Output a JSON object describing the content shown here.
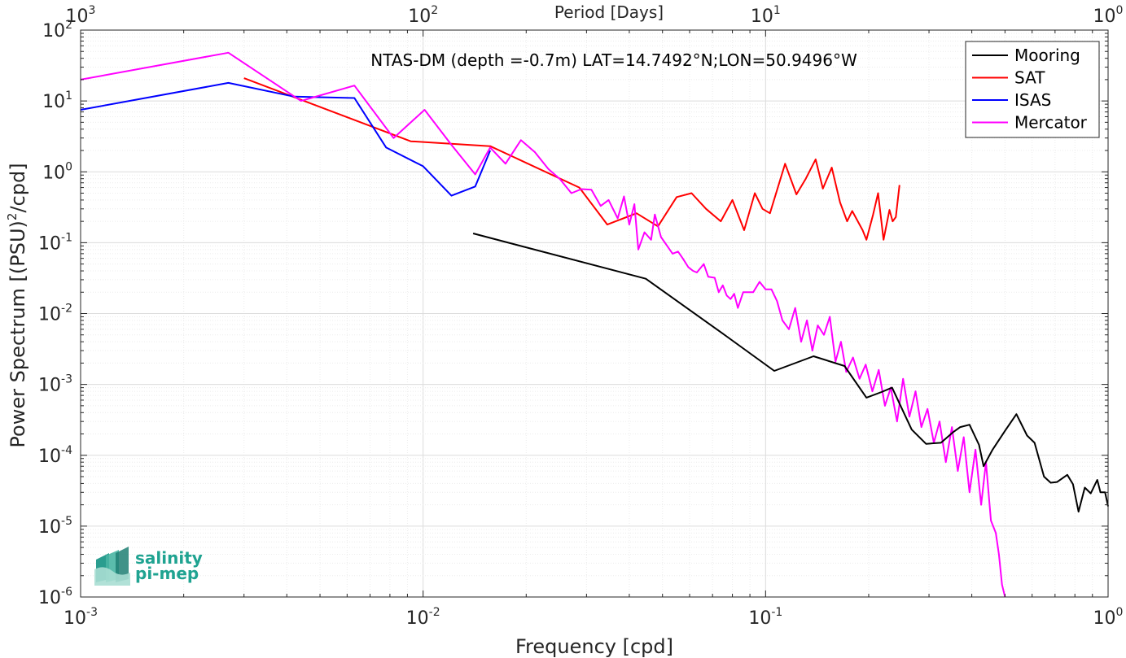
{
  "chart_data": {
    "type": "line",
    "title": "NTAS-DM (depth =-0.7m) LAT=14.7492°N;LON=50.9496°W",
    "xlabel": "Frequency [cpd]",
    "ylabel": "Power Spectrum [(PSU)²/cpd]",
    "top_xlabel": "Period [Days]",
    "xscale": "log",
    "yscale": "log",
    "xlim": [
      0.001,
      1
    ],
    "ylim": [
      1e-06,
      100
    ],
    "grid": true,
    "legend_position": "top-right",
    "x_tick_labels": [
      {
        "value": 0.001,
        "base": "10",
        "exp": "-3"
      },
      {
        "value": 0.01,
        "base": "10",
        "exp": "-2"
      },
      {
        "value": 0.1,
        "base": "10",
        "exp": "-1"
      },
      {
        "value": 1,
        "base": "10",
        "exp": "0"
      }
    ],
    "y_tick_labels": [
      {
        "value": 100,
        "base": "10",
        "exp": "2"
      },
      {
        "value": 10,
        "base": "10",
        "exp": "1"
      },
      {
        "value": 1,
        "base": "10",
        "exp": "0"
      },
      {
        "value": 0.1,
        "base": "10",
        "exp": "-1"
      },
      {
        "value": 0.01,
        "base": "10",
        "exp": "-2"
      },
      {
        "value": 0.001,
        "base": "10",
        "exp": "-3"
      },
      {
        "value": 0.0001,
        "base": "10",
        "exp": "-4"
      },
      {
        "value": 1e-05,
        "base": "10",
        "exp": "-5"
      },
      {
        "value": 1e-06,
        "base": "10",
        "exp": "-6"
      }
    ],
    "top_tick_labels": [
      {
        "freq": 0.001,
        "base": "10",
        "exp": "3"
      },
      {
        "freq": 0.01,
        "base": "10",
        "exp": "2"
      },
      {
        "freq": 0.1,
        "base": "10",
        "exp": "1"
      },
      {
        "freq": 1,
        "base": "10",
        "exp": "0"
      }
    ],
    "series": [
      {
        "name": "Mooring",
        "color": "#000000",
        "x": [
          0.014,
          0.0447,
          0.075,
          0.106,
          0.138,
          0.17,
          0.197,
          0.218,
          0.234,
          0.267,
          0.294,
          0.325,
          0.352,
          0.37,
          0.394,
          0.42,
          0.433,
          0.46,
          0.5,
          0.54,
          0.58,
          0.61,
          0.65,
          0.68,
          0.71,
          0.76,
          0.79,
          0.82,
          0.855,
          0.89,
          0.93,
          0.95,
          0.98,
          1.0
        ],
        "y": [
          0.135,
          0.031,
          0.0052,
          0.00155,
          0.0025,
          0.00182,
          0.00065,
          0.00078,
          0.0009,
          0.00023,
          0.000145,
          0.00015,
          0.00021,
          0.00025,
          0.00027,
          0.00014,
          7e-05,
          0.00012,
          0.000221,
          0.00038,
          0.00019,
          0.00015,
          5e-05,
          4.1e-05,
          4.2e-05,
          5.3e-05,
          3.9e-05,
          1.6e-05,
          3.5e-05,
          2.9e-05,
          4.5e-05,
          3e-05,
          3e-05,
          1.9e-05
        ]
      },
      {
        "name": "SAT",
        "color": "#ff0000",
        "x": [
          0.003,
          0.0092,
          0.0157,
          0.0286,
          0.0345,
          0.042,
          0.0485,
          0.055,
          0.0608,
          0.067,
          0.074,
          0.08,
          0.0866,
          0.093,
          0.098,
          0.103,
          0.114,
          0.123,
          0.131,
          0.14,
          0.147,
          0.156,
          0.165,
          0.173,
          0.179,
          0.192,
          0.197,
          0.206,
          0.213,
          0.221,
          0.23,
          0.235,
          0.24,
          0.246
        ],
        "y": [
          21,
          2.7,
          2.3,
          0.6,
          0.18,
          0.26,
          0.17,
          0.44,
          0.5,
          0.3,
          0.2,
          0.4,
          0.15,
          0.5,
          0.3,
          0.26,
          1.3,
          0.48,
          0.8,
          1.5,
          0.58,
          1.15,
          0.37,
          0.2,
          0.28,
          0.15,
          0.11,
          0.25,
          0.5,
          0.11,
          0.29,
          0.2,
          0.23,
          0.65
        ]
      },
      {
        "name": "ISAS",
        "color": "#0000ff",
        "x": [
          0.001,
          0.0027,
          0.0042,
          0.0063,
          0.0078,
          0.01,
          0.0121,
          0.0142,
          0.0157
        ],
        "y": [
          7.5,
          18,
          11.5,
          11,
          2.2,
          1.2,
          0.46,
          0.62,
          2.0
        ]
      },
      {
        "name": "Mercator",
        "color": "#ff00ff",
        "x": [
          0.001,
          0.0027,
          0.0044,
          0.0063,
          0.0082,
          0.0101,
          0.0121,
          0.0142,
          0.0157,
          0.0174,
          0.0193,
          0.0212,
          0.0232,
          0.0251,
          0.0271,
          0.029,
          0.031,
          0.033,
          0.0348,
          0.037,
          0.0386,
          0.04,
          0.0414,
          0.0425,
          0.0443,
          0.0463,
          0.0475,
          0.0495,
          0.0516,
          0.0535,
          0.0555,
          0.0573,
          0.0595,
          0.0614,
          0.063,
          0.066,
          0.068,
          0.071,
          0.073,
          0.075,
          0.077,
          0.079,
          0.081,
          0.083,
          0.086,
          0.089,
          0.092,
          0.096,
          0.1,
          0.104,
          0.108,
          0.112,
          0.117,
          0.122,
          0.127,
          0.132,
          0.137,
          0.142,
          0.148,
          0.154,
          0.16,
          0.166,
          0.172,
          0.18,
          0.188,
          0.196,
          0.205,
          0.214,
          0.223,
          0.232,
          0.242,
          0.252,
          0.263,
          0.274,
          0.285,
          0.297,
          0.31,
          0.322,
          0.336,
          0.35,
          0.364,
          0.379,
          0.394,
          0.41,
          0.426,
          0.44,
          0.455,
          0.47,
          0.48,
          0.49,
          0.5
        ],
        "y": [
          20,
          48,
          10,
          16.5,
          3.0,
          7.5,
          2.4,
          0.92,
          2.2,
          1.3,
          2.8,
          1.9,
          1.1,
          0.79,
          0.5,
          0.57,
          0.56,
          0.33,
          0.4,
          0.22,
          0.45,
          0.18,
          0.35,
          0.08,
          0.14,
          0.11,
          0.25,
          0.12,
          0.09,
          0.07,
          0.075,
          0.06,
          0.045,
          0.04,
          0.038,
          0.05,
          0.033,
          0.032,
          0.02,
          0.025,
          0.018,
          0.016,
          0.019,
          0.012,
          0.02,
          0.02,
          0.02,
          0.028,
          0.022,
          0.022,
          0.015,
          0.008,
          0.006,
          0.012,
          0.004,
          0.008,
          0.003,
          0.0068,
          0.005,
          0.009,
          0.0021,
          0.004,
          0.0015,
          0.0024,
          0.0012,
          0.0019,
          0.0008,
          0.0016,
          0.0005,
          0.0009,
          0.0003,
          0.0012,
          0.00035,
          0.0008,
          0.00025,
          0.00045,
          0.00015,
          0.0003,
          8e-05,
          0.00025,
          6e-05,
          0.00018,
          3e-05,
          0.00012,
          2e-05,
          8e-05,
          1.2e-05,
          8e-06,
          4e-06,
          1.5e-06,
          1e-06
        ]
      }
    ]
  },
  "logo": {
    "line1": "salinity",
    "line2": "pi-mep"
  }
}
